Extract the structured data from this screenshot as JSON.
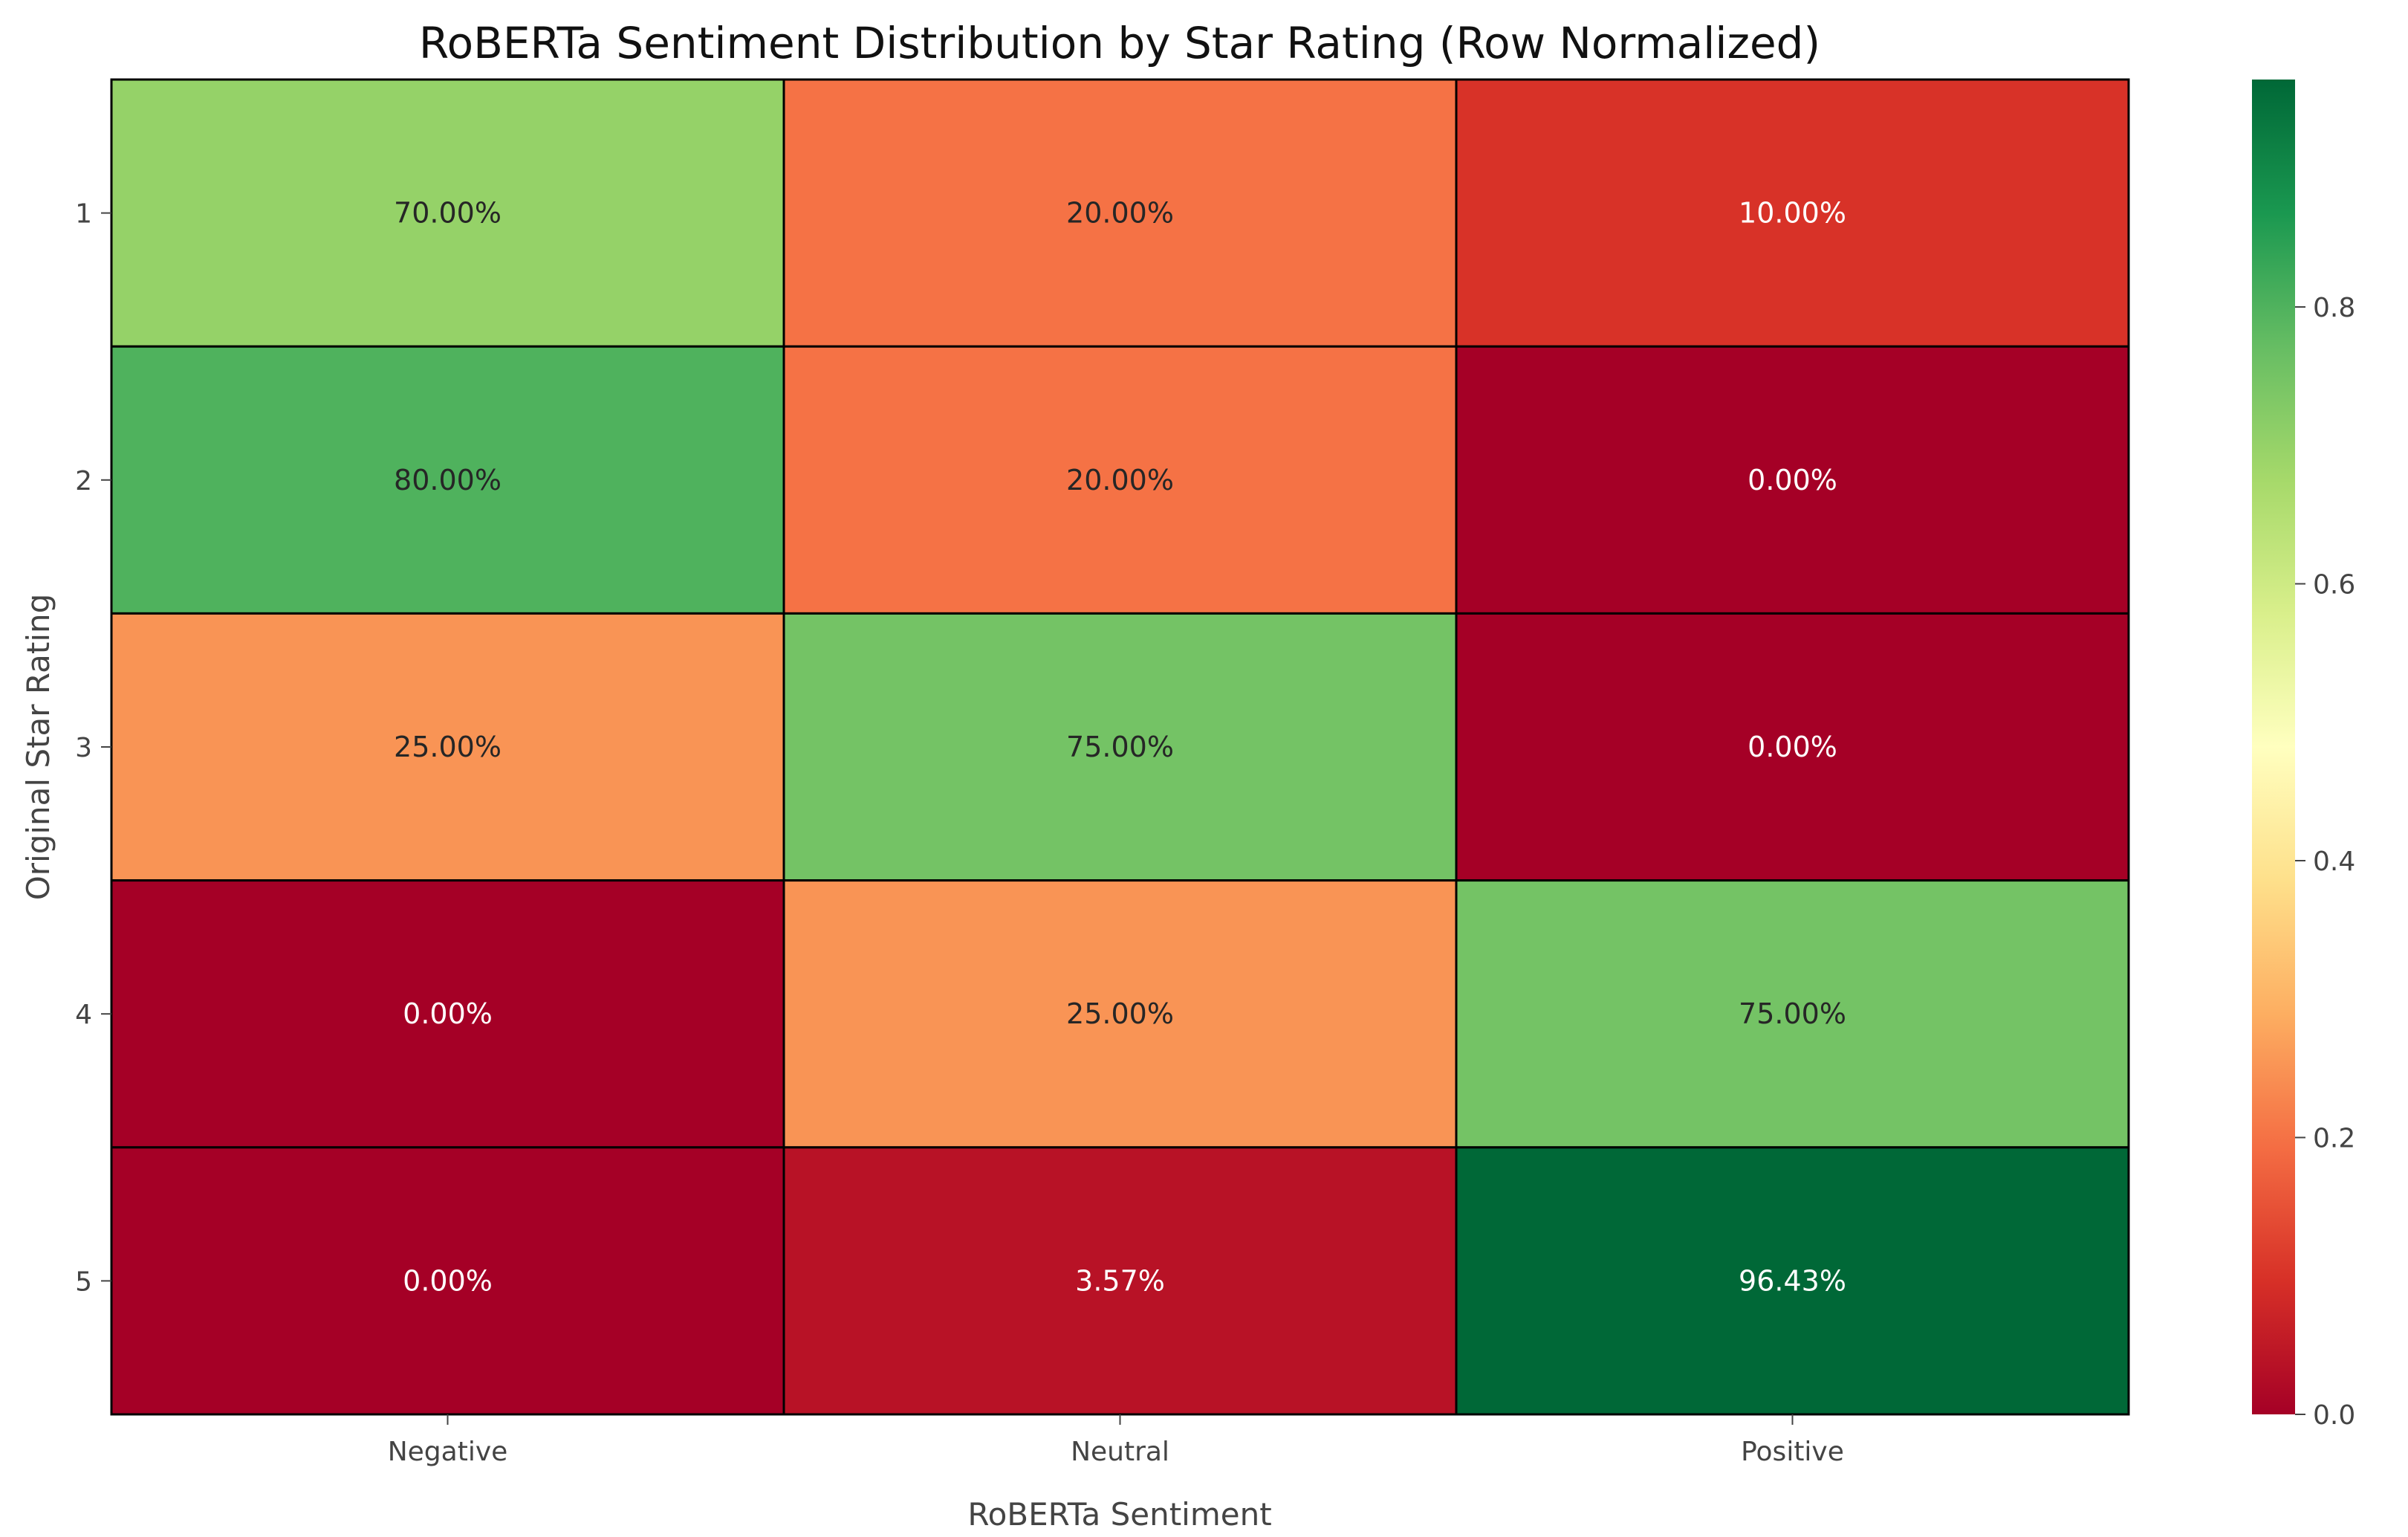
{
  "chart_data": {
    "type": "heatmap",
    "title": "RoBERTa Sentiment Distribution by Star Rating (Row Normalized)",
    "xlabel": "RoBERTa Sentiment",
    "ylabel": "Original Star Rating",
    "columns": [
      "Negative",
      "Neutral",
      "Positive"
    ],
    "rows": [
      "1",
      "2",
      "3",
      "4",
      "5"
    ],
    "values": [
      [
        0.7,
        0.2,
        0.1
      ],
      [
        0.8,
        0.2,
        0.0
      ],
      [
        0.25,
        0.75,
        0.0
      ],
      [
        0.0,
        0.25,
        0.75
      ],
      [
        0.0,
        0.0357,
        0.9643
      ]
    ],
    "cell_labels": [
      [
        "70.00%",
        "20.00%",
        "10.00%"
      ],
      [
        "80.00%",
        "20.00%",
        "0.00%"
      ],
      [
        "25.00%",
        "75.00%",
        "0.00%"
      ],
      [
        "0.00%",
        "25.00%",
        "75.00%"
      ],
      [
        "0.00%",
        "3.57%",
        "96.43%"
      ]
    ],
    "colormap": "RdYlGn",
    "colorbar": {
      "range": [
        0,
        0.9643
      ],
      "ticks": [
        0.0,
        0.2,
        0.4,
        0.6,
        0.8
      ],
      "tick_labels": [
        "0.0",
        "0.2",
        "0.4",
        "0.6",
        "0.8"
      ]
    },
    "cell_border_color": "#000000"
  }
}
